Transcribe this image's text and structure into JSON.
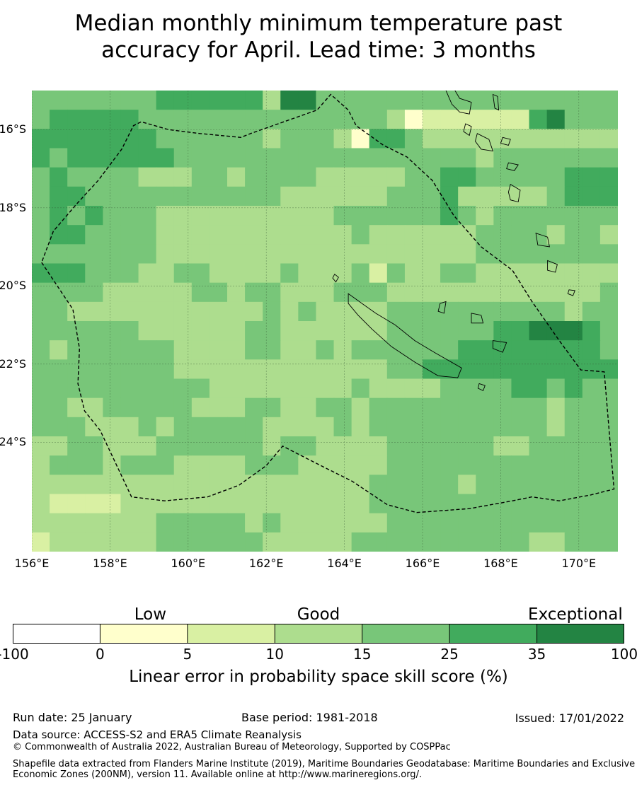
{
  "title_line1": "Median monthly minimum temperature past",
  "title_line2": "accuracy for April. Lead time: 3 months",
  "map": {
    "lon_range": [
      156,
      171
    ],
    "lat_range": [
      -26.8,
      -15.0
    ],
    "lon_ticks": [
      {
        "value": 156,
        "label": "156°E"
      },
      {
        "value": 158,
        "label": "158°E"
      },
      {
        "value": 160,
        "label": "160°E"
      },
      {
        "value": 162,
        "label": "162°E"
      },
      {
        "value": 164,
        "label": "164°E"
      },
      {
        "value": 166,
        "label": "166°E"
      },
      {
        "value": 168,
        "label": "168°E"
      },
      {
        "value": 170,
        "label": "170°E"
      }
    ],
    "lat_ticks": [
      {
        "value": -16,
        "label": "16°S"
      },
      {
        "value": -18,
        "label": "18°S"
      },
      {
        "value": -20,
        "label": "20°S"
      },
      {
        "value": -22,
        "label": "22°S"
      },
      {
        "value": -24,
        "label": "24°S"
      }
    ],
    "grid": true,
    "grid_cell_deg": [
      0.833,
      0.556
    ],
    "skill_grid": [
      "222222233333314422222222222222222",
      "233333222222222222221500000034222",
      "333333322222212221533211111111111",
      "323333332222222222222222212222222",
      "232222111221222211111223322222333",
      "233222222222221111112223111112333",
      "232322211111111112222223212222222",
      "233222211111111111211111122221221",
      "222222211111111111111111122222222",
      "333222112211112111202112211111111",
      "222211111221221112221111111111112",
      "221111111111121211112222222222122",
      "222222111111221111112222223344432",
      "212222221111221121222222333333332",
      "222222221111111111112233333333333",
      "222222222211111111211112222332322",
      "221122222111221122122222222221222",
      "222111212222211112122222222221222",
      "112211122222212211112222221122222",
      "122212221111222111112222222222222",
      "111111111111111111122222122222222",
      "100001111111111111122222222222222",
      "111111122222121111112222222222222",
      "011111122222211111222222222211222"
    ],
    "skill_palette": {
      "0": "#d9f0a3",
      "1": "#addd8e",
      "2": "#78c679",
      "3": "#41ab5d",
      "4": "#238443",
      "5": "#ffffcc"
    },
    "eez_boundary": [
      [
        156.25,
        -19.4
      ],
      [
        157.05,
        -20.6
      ],
      [
        157.22,
        -21.6
      ],
      [
        157.18,
        -22.5
      ],
      [
        157.35,
        -23.2
      ],
      [
        157.75,
        -23.7
      ],
      [
        158.55,
        -25.4
      ],
      [
        159.4,
        -25.5
      ],
      [
        160.5,
        -25.4
      ],
      [
        161.3,
        -25.1
      ],
      [
        162.0,
        -24.6
      ],
      [
        162.42,
        -24.1
      ],
      [
        163.2,
        -24.5
      ],
      [
        164.2,
        -25.0
      ],
      [
        165.1,
        -25.6
      ],
      [
        165.85,
        -25.8
      ],
      [
        167.2,
        -25.7
      ],
      [
        168.3,
        -25.5
      ],
      [
        168.8,
        -25.4
      ],
      [
        169.5,
        -25.5
      ],
      [
        170.3,
        -25.35
      ],
      [
        170.9,
        -25.2
      ],
      [
        170.65,
        -22.2
      ],
      [
        170.05,
        -22.15
      ],
      [
        169.5,
        -21.4
      ],
      [
        168.8,
        -20.4
      ],
      [
        168.3,
        -19.6
      ],
      [
        167.5,
        -19.0
      ],
      [
        166.8,
        -18.2
      ],
      [
        166.25,
        -17.3
      ],
      [
        165.6,
        -16.7
      ],
      [
        165.0,
        -16.4
      ],
      [
        164.3,
        -15.9
      ],
      [
        164.1,
        -15.5
      ],
      [
        163.65,
        -15.1
      ],
      [
        163.3,
        -15.5
      ],
      [
        161.6,
        -16.1
      ],
      [
        161.35,
        -16.2
      ],
      [
        160.3,
        -16.1
      ],
      [
        159.5,
        -16.0
      ],
      [
        158.8,
        -15.8
      ],
      [
        158.6,
        -15.9
      ],
      [
        158.3,
        -16.5
      ],
      [
        157.7,
        -17.3
      ],
      [
        157.15,
        -17.9
      ],
      [
        156.55,
        -18.6
      ],
      [
        156.25,
        -19.4
      ]
    ],
    "islands": [
      [
        [
          164.1,
          -20.2
        ],
        [
          164.8,
          -20.7
        ],
        [
          165.3,
          -21.0
        ],
        [
          165.8,
          -21.4
        ],
        [
          166.3,
          -21.7
        ],
        [
          167.0,
          -22.1
        ],
        [
          166.9,
          -22.35
        ],
        [
          166.4,
          -22.3
        ],
        [
          165.8,
          -21.95
        ],
        [
          165.2,
          -21.55
        ],
        [
          164.7,
          -21.1
        ],
        [
          164.35,
          -20.75
        ],
        [
          164.1,
          -20.45
        ]
      ],
      [
        [
          163.75,
          -19.7
        ],
        [
          163.85,
          -19.78
        ],
        [
          163.78,
          -19.9
        ],
        [
          163.7,
          -19.8
        ]
      ],
      [
        [
          166.55,
          -14.65
        ],
        [
          166.7,
          -14.6
        ],
        [
          166.8,
          -14.95
        ],
        [
          166.95,
          -15.2
        ],
        [
          167.25,
          -15.3
        ],
        [
          167.2,
          -15.6
        ],
        [
          166.95,
          -15.55
        ],
        [
          166.75,
          -15.35
        ],
        [
          166.6,
          -15.0
        ]
      ],
      [
        [
          167.8,
          -15.1
        ],
        [
          167.92,
          -15.15
        ],
        [
          167.95,
          -15.5
        ],
        [
          167.85,
          -15.45
        ]
      ],
      [
        [
          167.1,
          -15.85
        ],
        [
          167.25,
          -15.92
        ],
        [
          167.2,
          -16.15
        ],
        [
          167.05,
          -16.05
        ]
      ],
      [
        [
          167.4,
          -16.1
        ],
        [
          167.7,
          -16.25
        ],
        [
          167.8,
          -16.55
        ],
        [
          167.5,
          -16.5
        ],
        [
          167.35,
          -16.3
        ]
      ],
      [
        [
          168.05,
          -16.2
        ],
        [
          168.25,
          -16.25
        ],
        [
          168.2,
          -16.4
        ],
        [
          168.0,
          -16.35
        ]
      ],
      [
        [
          168.2,
          -16.85
        ],
        [
          168.45,
          -16.9
        ],
        [
          168.35,
          -17.05
        ],
        [
          168.15,
          -17.0
        ]
      ],
      [
        [
          168.25,
          -17.4
        ],
        [
          168.5,
          -17.55
        ],
        [
          168.45,
          -17.85
        ],
        [
          168.25,
          -17.8
        ],
        [
          168.2,
          -17.6
        ]
      ],
      [
        [
          168.9,
          -18.65
        ],
        [
          169.2,
          -18.75
        ],
        [
          169.25,
          -19.0
        ],
        [
          168.95,
          -18.95
        ]
      ],
      [
        [
          169.2,
          -19.35
        ],
        [
          169.45,
          -19.45
        ],
        [
          169.4,
          -19.65
        ],
        [
          169.2,
          -19.6
        ]
      ],
      [
        [
          167.8,
          -21.4
        ],
        [
          168.15,
          -21.45
        ],
        [
          168.05,
          -21.7
        ],
        [
          167.8,
          -21.6
        ]
      ],
      [
        [
          167.25,
          -20.7
        ],
        [
          167.5,
          -20.75
        ],
        [
          167.55,
          -20.95
        ],
        [
          167.25,
          -20.95
        ]
      ],
      [
        [
          166.45,
          -20.45
        ],
        [
          166.6,
          -20.4
        ],
        [
          166.55,
          -20.7
        ],
        [
          166.4,
          -20.65
        ]
      ],
      [
        [
          167.45,
          -22.5
        ],
        [
          167.6,
          -22.55
        ],
        [
          167.55,
          -22.68
        ],
        [
          167.42,
          -22.62
        ]
      ],
      [
        [
          169.75,
          -20.1
        ],
        [
          169.9,
          -20.12
        ],
        [
          169.85,
          -20.25
        ],
        [
          169.72,
          -20.2
        ]
      ]
    ]
  },
  "legend": {
    "categories": [
      {
        "label": "Low",
        "at": 0.225
      },
      {
        "label": "Good",
        "at": 0.5
      },
      {
        "label": "Exceptional",
        "at": 0.92
      }
    ],
    "bins": [
      {
        "from": "-100",
        "to": "0",
        "color": "#ffffff"
      },
      {
        "from": "0",
        "to": "5",
        "color": "#ffffcc"
      },
      {
        "from": "5",
        "to": "10",
        "color": "#d9f0a3"
      },
      {
        "from": "10",
        "to": "15",
        "color": "#addd8e"
      },
      {
        "from": "15",
        "to": "25",
        "color": "#78c679"
      },
      {
        "from": "25",
        "to": "35",
        "color": "#41ab5d"
      },
      {
        "from": "35",
        "to": "100",
        "color": "#238443"
      }
    ],
    "tick_labels": [
      "-100",
      "0",
      "5",
      "10",
      "15",
      "25",
      "35",
      "100"
    ],
    "title": "Linear error in probability space skill score (%)"
  },
  "footer": {
    "run_date": "Run date: 25 January",
    "base_period": "Base period: 1981-2018",
    "issued": "Issued: 17/01/2022",
    "data_source": "Data source: ACCESS-S2 and ERA5 Climate Reanalysis",
    "copyright": "© Commonwealth of Australia 2022, Australian Bureau of Meteorology, Supported by COSPPac",
    "shapefile": "Shapefile data extracted from Flanders Marine Institute (2019), Maritime Boundaries Geodatabase: Maritime Boundaries and Exclusive Economic Zones (200NM), version 11. Available online at http://www.marineregions.org/."
  }
}
